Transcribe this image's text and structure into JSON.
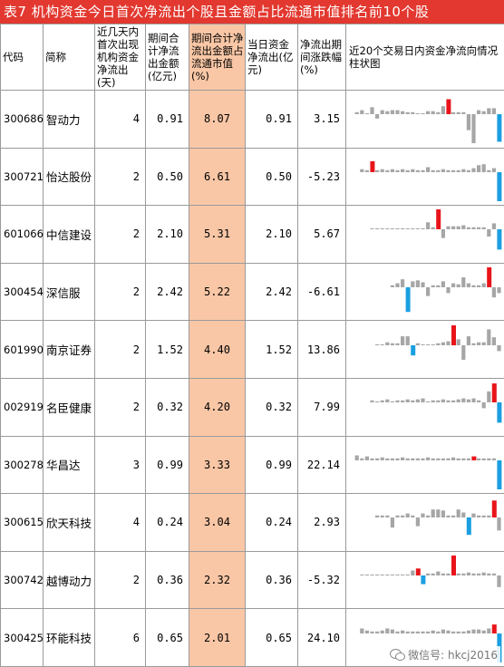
{
  "title": "表7  机构资金今日首次净流出个股且金额占比流通市值排名前10个股",
  "headers": [
    "代码",
    "简称",
    "近几天内首次出现机构资金净流出(天)",
    "期间合计净流出金额(亿元)",
    "期间合计净流出金额占流通市值(%)",
    "当日资金净流出(亿元)",
    "净流出期间涨跌幅(%)",
    "近20个交易日内资金净流向情况柱状图"
  ],
  "colors": {
    "title_bg": "#e2382f",
    "highlight": "#f9c7a6",
    "bar_gray": "#a6a6a6",
    "bar_red": "#e8141a",
    "bar_blue": "#1a9fe0"
  },
  "rows": [
    {
      "code": "300686",
      "name": "智动力",
      "days": "4",
      "amount": "0.91",
      "pct": "8.07",
      "today": "0.91",
      "change": "3.15",
      "bars": [
        0.1,
        0.2,
        0,
        0.35,
        -0.15,
        0.2,
        0.15,
        0.2,
        0.2,
        0.15,
        0.1,
        0.1,
        0,
        0,
        0.15,
        0.15,
        0.1,
        0.4,
        0.75,
        0.1,
        0.1,
        0.1,
        -0.55,
        -1.0,
        0.2,
        0.15,
        0.3,
        0.3,
        -0.95
      ],
      "colors": [
        "g",
        "g",
        "g",
        "g",
        "g",
        "g",
        "g",
        "g",
        "g",
        "g",
        "g",
        "g",
        "g",
        "g",
        "g",
        "g",
        "g",
        "g",
        "r",
        "g",
        "g",
        "g",
        "g",
        "g",
        "g",
        "g",
        "g",
        "g",
        "b"
      ]
    },
    {
      "code": "300721",
      "name": "怡达股份",
      "days": "2",
      "amount": "0.50",
      "pct": "6.61",
      "today": "0.50",
      "change": "-5.23",
      "bars": [
        0.15,
        0.1,
        0.55,
        0.1,
        0.15,
        0.1,
        0.15,
        0.1,
        0.15,
        0.1,
        0.15,
        0.1,
        0.1,
        0.25,
        0.1,
        0.1,
        0.15,
        0.1,
        0.1,
        0.1,
        0.15,
        0.1,
        0.2,
        0.35,
        0.4,
        0.1,
        0.2,
        -1.0
      ],
      "colors": [
        "g",
        "g",
        "r",
        "g",
        "g",
        "g",
        "g",
        "g",
        "g",
        "g",
        "g",
        "g",
        "g",
        "g",
        "g",
        "g",
        "g",
        "g",
        "g",
        "g",
        "g",
        "g",
        "g",
        "g",
        "g",
        "g",
        "g",
        "b"
      ]
    },
    {
      "code": "601066",
      "name": "中信建设",
      "days": "2",
      "amount": "2.10",
      "pct": "5.31",
      "today": "2.10",
      "change": "5.67",
      "bars": [
        0,
        0,
        0,
        0,
        0,
        0,
        0,
        0,
        0,
        0,
        0.05,
        0.35,
        0.1,
        1.0,
        -0.3,
        0.15,
        0.15,
        0.15,
        0.2,
        0.1,
        0.1,
        0.1,
        0.1,
        -0.25,
        0.3,
        -0.7
      ],
      "colors": [
        "g",
        "g",
        "g",
        "g",
        "g",
        "g",
        "g",
        "g",
        "g",
        "g",
        "g",
        "g",
        "g",
        "r",
        "g",
        "g",
        "g",
        "g",
        "g",
        "g",
        "g",
        "g",
        "g",
        "g",
        "g",
        "b"
      ]
    },
    {
      "code": "300454",
      "name": "深信服",
      "days": "2",
      "amount": "2.42",
      "pct": "5.22",
      "today": "2.42",
      "change": "-6.61",
      "bars": [
        0.1,
        0.2,
        0.4,
        -0.85,
        0.3,
        0.35,
        0.25,
        -0.3,
        0.1,
        0.1,
        0.3,
        -0.2,
        0.2,
        0.15,
        0.5,
        0.2,
        0.1,
        0.1,
        0.2,
        1.0,
        -0.35,
        -0.2
      ],
      "colors": [
        "g",
        "g",
        "g",
        "b",
        "g",
        "g",
        "g",
        "g",
        "g",
        "g",
        "g",
        "g",
        "g",
        "g",
        "g",
        "g",
        "g",
        "g",
        "g",
        "r",
        "g",
        "g"
      ]
    },
    {
      "code": "601990",
      "name": "南京证券",
      "days": "2",
      "amount": "1.52",
      "pct": "4.40",
      "today": "1.52",
      "change": "13.86",
      "bars": [
        0,
        0,
        0.15,
        0.1,
        0.1,
        0.45,
        0.45,
        -0.35,
        0.1,
        0,
        0,
        0,
        0.1,
        0.15,
        0.2,
        1.0,
        0.3,
        -0.5,
        0.45,
        0.1,
        0.15,
        0.15,
        0.8,
        0.4,
        -0.2
      ],
      "colors": [
        "g",
        "g",
        "g",
        "g",
        "g",
        "g",
        "g",
        "b",
        "g",
        "g",
        "g",
        "g",
        "g",
        "g",
        "g",
        "r",
        "g",
        "g",
        "g",
        "g",
        "g",
        "g",
        "g",
        "g",
        "g"
      ]
    },
    {
      "code": "002919",
      "name": "名臣健康",
      "days": "2",
      "amount": "0.32",
      "pct": "4.20",
      "today": "0.32",
      "change": "7.99",
      "bars": [
        0.1,
        0.05,
        0.1,
        0.15,
        0.05,
        0.1,
        0.1,
        0.15,
        0.1,
        0.15,
        0.2,
        0.05,
        0.1,
        0.1,
        0.15,
        0.1,
        0.1,
        0.15,
        0.2,
        0.15,
        0.2,
        0.1,
        -0.2,
        0.55,
        0.95,
        -0.7
      ],
      "colors": [
        "g",
        "g",
        "g",
        "g",
        "g",
        "g",
        "g",
        "g",
        "g",
        "g",
        "g",
        "g",
        "g",
        "g",
        "g",
        "g",
        "g",
        "g",
        "g",
        "g",
        "g",
        "g",
        "g",
        "g",
        "r",
        "b"
      ]
    },
    {
      "code": "300278",
      "name": "华昌达",
      "days": "3",
      "amount": "0.99",
      "pct": "3.33",
      "today": "0.99",
      "change": "22.14",
      "bars": [
        0.25,
        0.1,
        0.2,
        0.1,
        0.1,
        0.15,
        0.1,
        0.1,
        0.1,
        0.15,
        0.1,
        0.1,
        0.1,
        0.1,
        0.15,
        0.1,
        0.1,
        0.1,
        0.1,
        0.15,
        0.1,
        0.1,
        0.1,
        0.2,
        0.1,
        0.1,
        0.1,
        0.1,
        -1.0
      ],
      "colors": [
        "g",
        "g",
        "g",
        "g",
        "g",
        "g",
        "g",
        "g",
        "g",
        "g",
        "g",
        "g",
        "g",
        "g",
        "g",
        "g",
        "g",
        "g",
        "g",
        "g",
        "g",
        "g",
        "g",
        "r",
        "g",
        "g",
        "g",
        "g",
        "b"
      ]
    },
    {
      "code": "300615",
      "name": "欣天科技",
      "days": "4",
      "amount": "0.24",
      "pct": "3.04",
      "today": "0.24",
      "change": "2.93",
      "bars": [
        0.1,
        0.1,
        0.1,
        -0.35,
        0.1,
        0.1,
        0.2,
        0.1,
        -0.3,
        0.2,
        0.1,
        0.4,
        0.4,
        0.35,
        0.1,
        0.1,
        0.4,
        0.25,
        -0.6,
        0.2,
        0.1,
        0.1,
        0.1,
        0.85,
        -0.45
      ],
      "colors": [
        "g",
        "g",
        "g",
        "g",
        "g",
        "g",
        "g",
        "g",
        "g",
        "g",
        "g",
        "g",
        "g",
        "g",
        "g",
        "g",
        "g",
        "g",
        "b",
        "g",
        "g",
        "g",
        "g",
        "r",
        "g"
      ]
    },
    {
      "code": "300742",
      "name": "越博动力",
      "days": "2",
      "amount": "0.36",
      "pct": "2.32",
      "today": "0.36",
      "change": "-5.32",
      "bars": [
        0,
        0,
        0,
        0,
        0,
        0,
        0,
        0,
        0,
        0.05,
        0.25,
        0.35,
        -0.3,
        0.1,
        0.1,
        0.2,
        0.1,
        0.1,
        1.0,
        0.1,
        0.1,
        0.15,
        0.1,
        0.1,
        0.15,
        0.1,
        0.1,
        -0.4
      ],
      "colors": [
        "g",
        "g",
        "g",
        "g",
        "g",
        "g",
        "g",
        "g",
        "g",
        "g",
        "g",
        "r",
        "b",
        "g",
        "g",
        "g",
        "g",
        "g",
        "r",
        "g",
        "g",
        "g",
        "g",
        "g",
        "g",
        "g",
        "g",
        "g"
      ]
    },
    {
      "code": "300425",
      "name": "环能科技",
      "days": "6",
      "amount": "0.65",
      "pct": "2.01",
      "today": "0.65",
      "change": "24.10",
      "bars": [
        0.25,
        0.15,
        0.1,
        0.1,
        0.15,
        0.25,
        0.2,
        0.1,
        0.15,
        0.1,
        0.1,
        0.1,
        0.1,
        0.1,
        0.15,
        0.1,
        0.2,
        0.15,
        0.1,
        0.1,
        0.1,
        0.15,
        0.2,
        0.2,
        0.15,
        0.25,
        0.45,
        -1.0
      ],
      "colors": [
        "g",
        "g",
        "g",
        "g",
        "g",
        "g",
        "g",
        "g",
        "g",
        "g",
        "g",
        "g",
        "g",
        "g",
        "g",
        "g",
        "g",
        "g",
        "g",
        "g",
        "g",
        "g",
        "g",
        "g",
        "g",
        "g",
        "r",
        "b"
      ]
    }
  ],
  "watermark": "微信号: hkcj2016"
}
